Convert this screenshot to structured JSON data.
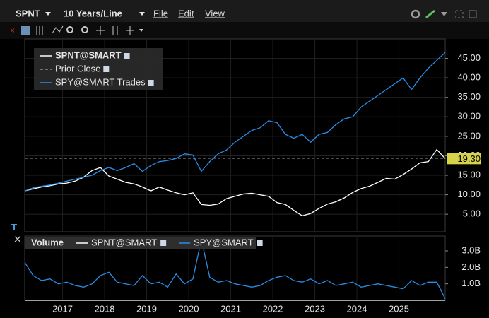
{
  "toolbar": {
    "symbol": "SPNT",
    "period": "10 Years/Line",
    "menu": [
      "File",
      "Edit",
      "View"
    ]
  },
  "chart_data": [
    {
      "type": "line",
      "xlim": [
        2016.1,
        2026.1
      ],
      "ylim": [
        0.5,
        50
      ],
      "yticks": [
        {
          "value": 5,
          "label": "5.00"
        },
        {
          "value": 10,
          "label": "10.00"
        },
        {
          "value": 15,
          "label": "15.00"
        },
        {
          "value": 20,
          "label": "20.00"
        },
        {
          "value": 25,
          "label": "25.00"
        },
        {
          "value": 30,
          "label": "30.00"
        },
        {
          "value": 35,
          "label": "35.00"
        },
        {
          "value": 40,
          "label": "40.00"
        },
        {
          "value": 45,
          "label": "45.00"
        }
      ],
      "grid": true,
      "legend": "top-left",
      "series": [
        {
          "name": "SPNT@SMART",
          "color": "#ffffff",
          "values": [
            11,
            11.5,
            12,
            12.3,
            12.8,
            13,
            13.5,
            14.5,
            16.2,
            17,
            14.8,
            14,
            13.2,
            12.8,
            12,
            11,
            12,
            11.2,
            10.5,
            10,
            10.5,
            7.5,
            7.3,
            7.6,
            9,
            9.6,
            10.2,
            10.4,
            10,
            9.6,
            8,
            7.5,
            6,
            4.6,
            5.2,
            6.5,
            7.6,
            8.2,
            9.2,
            10.6,
            11.6,
            12.2,
            13.2,
            14.2,
            14,
            15.2,
            16.6,
            18.2,
            18.5,
            21.6,
            19.3
          ]
        },
        {
          "name": "SPY@SMART Trades",
          "color": "#2a8de6",
          "values": [
            11,
            11.8,
            12.2,
            12.5,
            13,
            13.5,
            14,
            14.5,
            15,
            16.2,
            17,
            16.2,
            17,
            18,
            16,
            17.5,
            18.5,
            18.8,
            19.3,
            20.5,
            20.2,
            16,
            18.5,
            20.5,
            21.5,
            23.5,
            25,
            26.5,
            27.2,
            29,
            28.5,
            25.5,
            24.5,
            25.5,
            23.5,
            25.5,
            26,
            28,
            29.5,
            30,
            32.5,
            34,
            35.5,
            37,
            38.5,
            40,
            37,
            40,
            42.5,
            44.5,
            46.5
          ]
        }
      ],
      "reference_line": {
        "name": "Prior Close",
        "value": 19.3,
        "label": "19.30",
        "color": "#d6d24a"
      }
    },
    {
      "type": "line",
      "title": "Volume",
      "xlim": [
        2016.1,
        2026.1
      ],
      "ylim": [
        0,
        3.9
      ],
      "xticks": [
        2017,
        2018,
        2019,
        2020,
        2021,
        2022,
        2023,
        2024,
        2025
      ],
      "yticks": [
        {
          "value": 1,
          "label": "1.0B"
        },
        {
          "value": 2,
          "label": "2.0B"
        },
        {
          "value": 3,
          "label": "3.0B"
        }
      ],
      "grid": false,
      "legend": "top-left",
      "series": [
        {
          "name": "SPNT@SMART",
          "color": "#ffffff",
          "values": [
            0,
            0,
            0,
            0,
            0,
            0,
            0,
            0,
            0,
            0,
            0,
            0,
            0,
            0,
            0,
            0,
            0,
            0,
            0,
            0,
            0,
            0,
            0,
            0,
            0,
            0,
            0,
            0,
            0,
            0,
            0,
            0,
            0,
            0,
            0,
            0,
            0,
            0,
            0,
            0,
            0,
            0,
            0,
            0,
            0,
            0,
            0,
            0,
            0,
            0,
            0
          ]
        },
        {
          "name": "SPY@SMART",
          "color": "#2a8de6",
          "values": [
            2.3,
            1.5,
            1.2,
            1.3,
            1.0,
            1.1,
            0.9,
            0.8,
            1.0,
            1.5,
            1.7,
            1.1,
            1.0,
            0.9,
            1.5,
            1.0,
            1.1,
            0.8,
            1.6,
            1.0,
            1.3,
            3.7,
            1.4,
            1.1,
            1.2,
            1.0,
            0.9,
            0.8,
            0.9,
            1.2,
            1.4,
            1.5,
            1.2,
            1.1,
            1.3,
            1.0,
            1.2,
            0.9,
            1.0,
            1.1,
            0.8,
            0.9,
            1.0,
            0.9,
            0.8,
            0.7,
            1.2,
            0.9,
            1.1,
            1.1,
            0.1
          ]
        }
      ]
    }
  ]
}
